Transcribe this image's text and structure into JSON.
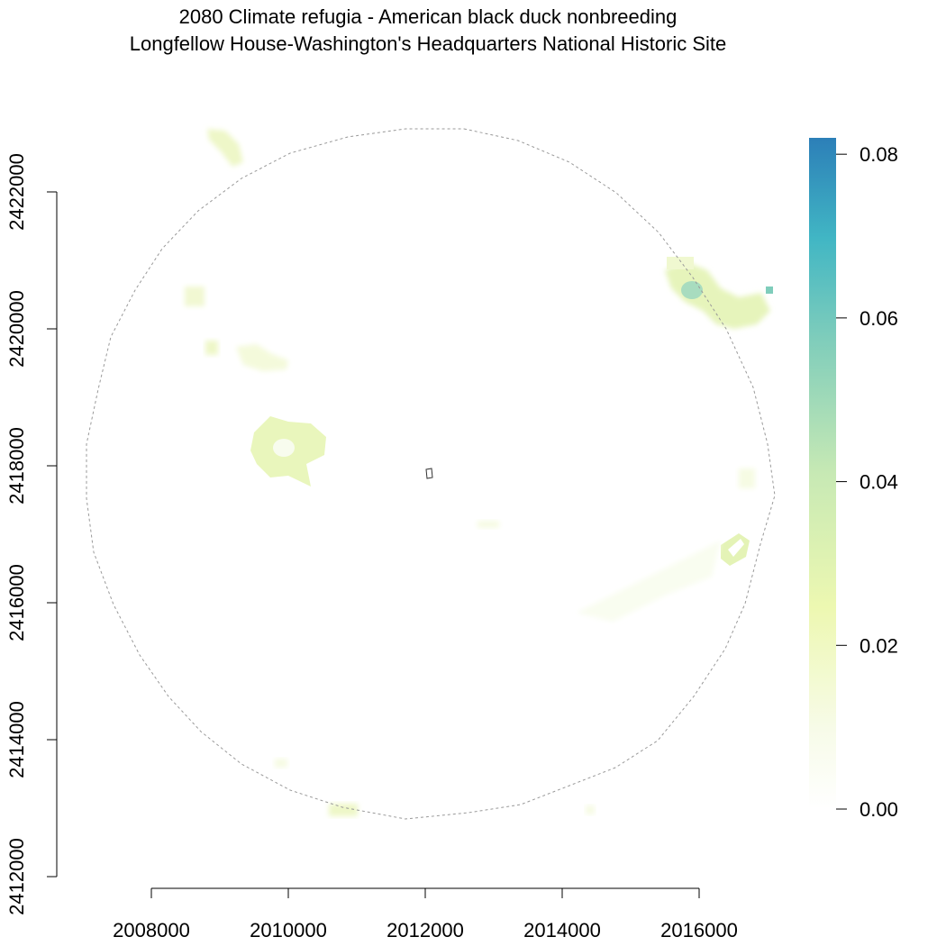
{
  "title": {
    "line1": "2080 Climate refugia - American black duck nonbreeding",
    "line2": "Longfellow House-Washington's Headquarters National Historic Site"
  },
  "chart_data": {
    "type": "heatmap",
    "x_axis": {
      "ticks": [
        2008000,
        2010000,
        2012000,
        2014000,
        2016000
      ],
      "tick_labels": [
        "2008000",
        "2010000",
        "2012000",
        "2014000",
        "2016000"
      ]
    },
    "y_axis": {
      "ticks": [
        2412000,
        2414000,
        2416000,
        2418000,
        2420000,
        2422000
      ],
      "tick_labels": [
        "2412000",
        "2414000",
        "2416000",
        "2418000",
        "2420000",
        "2422000"
      ]
    },
    "legend": {
      "placement": "right",
      "range": [
        0,
        0.082
      ],
      "ticks": [
        0.0,
        0.02,
        0.04,
        0.06,
        0.08
      ],
      "tick_labels": [
        "0.00",
        "0.02",
        "0.04",
        "0.06",
        "0.08"
      ],
      "colors": [
        "#ffffff",
        "#f7fbe8",
        "#edf8b1",
        "#c7e9b4",
        "#7fcdbb",
        "#41b6c4",
        "#2c7fb8"
      ]
    },
    "study_area": "circular buffer (dashed outline)",
    "site_marker": "small polygon near center"
  }
}
